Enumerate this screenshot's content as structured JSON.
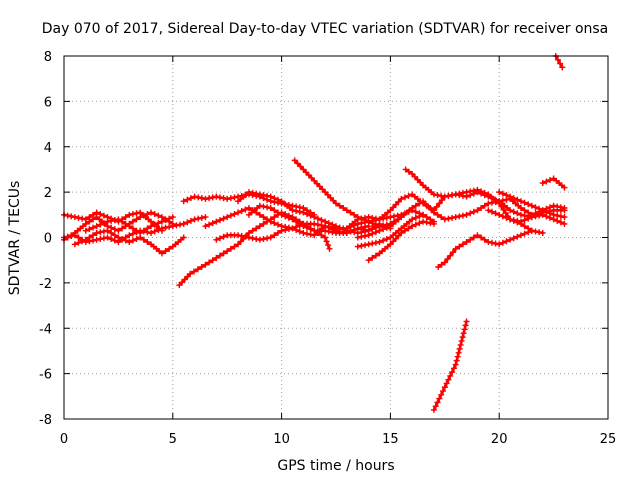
{
  "chart_data": {
    "type": "scatter",
    "title": "Day 070 of 2017, Sidereal Day-to-day VTEC variation (SDTVAR) for receiver onsa",
    "xlabel": "GPS time / hours",
    "ylabel": "SDTVAR / TECUs",
    "xlim": [
      0,
      25
    ],
    "ylim": [
      -8,
      8
    ],
    "xticks": [
      0,
      5,
      10,
      15,
      20,
      25
    ],
    "yticks": [
      -8,
      -6,
      -4,
      -2,
      0,
      2,
      4,
      6,
      8
    ],
    "grid": true,
    "marker": "plus",
    "color": "#ff0000",
    "series": [
      {
        "points": [
          [
            0,
            1.0
          ],
          [
            0.5,
            0.9
          ],
          [
            1,
            0.8
          ],
          [
            1.5,
            1.1
          ],
          [
            2,
            0.9
          ],
          [
            2.5,
            0.7
          ],
          [
            3,
            1.0
          ],
          [
            3.5,
            1.1
          ],
          [
            4,
            0.7
          ],
          [
            4.5,
            0.3
          ]
        ]
      },
      {
        "points": [
          [
            0,
            0.0
          ],
          [
            0.5,
            0.1
          ],
          [
            1,
            -0.2
          ],
          [
            1.5,
            -0.1
          ],
          [
            2,
            0.0
          ],
          [
            2.5,
            -0.2
          ],
          [
            3,
            0.1
          ],
          [
            3.5,
            0.3
          ],
          [
            4,
            0.2
          ],
          [
            4.5,
            0.4
          ],
          [
            5,
            0.5
          ],
          [
            5.5,
            0.6
          ],
          [
            6,
            0.8
          ],
          [
            6.5,
            0.9
          ]
        ]
      },
      {
        "points": [
          [
            0,
            -0.1
          ],
          [
            0.5,
            0.2
          ],
          [
            1,
            0.6
          ],
          [
            1.5,
            0.9
          ],
          [
            2,
            0.5
          ],
          [
            2.5,
            0.3
          ],
          [
            3,
            0.6
          ],
          [
            3.5,
            0.9
          ],
          [
            4,
            1.1
          ],
          [
            4.5,
            0.9
          ],
          [
            5,
            0.6
          ]
        ]
      },
      {
        "points": [
          [
            0.5,
            -0.3
          ],
          [
            1,
            -0.1
          ],
          [
            1.5,
            0.2
          ],
          [
            2,
            0.3
          ],
          [
            2.5,
            0.0
          ],
          [
            3,
            -0.2
          ],
          [
            3.5,
            0.0
          ],
          [
            4,
            -0.3
          ],
          [
            4.5,
            -0.7
          ],
          [
            5,
            -0.4
          ],
          [
            5.5,
            0.0
          ]
        ]
      },
      {
        "points": [
          [
            1,
            0.3
          ],
          [
            1.5,
            0.5
          ],
          [
            2,
            0.7
          ],
          [
            2.5,
            0.8
          ],
          [
            3,
            0.5
          ],
          [
            3.5,
            0.2
          ],
          [
            4,
            0.5
          ],
          [
            4.5,
            0.7
          ],
          [
            5,
            0.9
          ]
        ]
      },
      {
        "points": [
          [
            5.3,
            -2.1
          ],
          [
            5.8,
            -1.6
          ],
          [
            6.5,
            -1.2
          ],
          [
            7,
            -0.9
          ],
          [
            7.5,
            -0.6
          ],
          [
            8,
            -0.3
          ],
          [
            8.5,
            0.2
          ],
          [
            9,
            0.5
          ],
          [
            9.5,
            0.8
          ],
          [
            10,
            1.1
          ],
          [
            10.5,
            0.9
          ],
          [
            11,
            0.6
          ],
          [
            11.5,
            0.3
          ],
          [
            12,
            0.0
          ],
          [
            12.2,
            -0.5
          ]
        ]
      },
      {
        "points": [
          [
            5.5,
            1.6
          ],
          [
            6,
            1.8
          ],
          [
            6.5,
            1.7
          ],
          [
            7,
            1.8
          ],
          [
            7.5,
            1.7
          ],
          [
            8,
            1.8
          ],
          [
            8.5,
            1.9
          ],
          [
            9,
            1.8
          ],
          [
            9.5,
            1.6
          ],
          [
            10,
            1.5
          ],
          [
            10.5,
            1.4
          ],
          [
            11,
            1.3
          ],
          [
            11.5,
            1.0
          ]
        ]
      },
      {
        "points": [
          [
            6.5,
            0.5
          ],
          [
            7,
            0.7
          ],
          [
            7.5,
            0.9
          ],
          [
            8,
            1.1
          ],
          [
            8.5,
            1.3
          ],
          [
            9,
            1.0
          ],
          [
            9.5,
            0.7
          ],
          [
            10,
            0.5
          ],
          [
            10.5,
            0.4
          ],
          [
            11,
            0.6
          ],
          [
            11.5,
            0.6
          ],
          [
            12,
            0.5
          ],
          [
            12.5,
            0.4
          ],
          [
            13,
            0.4
          ],
          [
            13.5,
            0.6
          ],
          [
            14,
            0.7
          ],
          [
            14.5,
            0.8
          ],
          [
            15,
            0.9
          ],
          [
            15.5,
            1.0
          ],
          [
            16,
            1.2
          ],
          [
            16.5,
            1.0
          ],
          [
            17,
            0.7
          ]
        ]
      },
      {
        "points": [
          [
            7,
            -0.1
          ],
          [
            7.5,
            0.1
          ],
          [
            8,
            0.1
          ],
          [
            8.5,
            0.0
          ],
          [
            9,
            -0.1
          ],
          [
            9.5,
            0.0
          ],
          [
            10,
            0.3
          ],
          [
            10.5,
            0.4
          ],
          [
            11,
            0.2
          ],
          [
            11.5,
            0.1
          ],
          [
            12,
            0.5
          ],
          [
            12.5,
            0.3
          ],
          [
            13,
            0.2
          ],
          [
            13.5,
            0.4
          ],
          [
            14,
            0.5
          ]
        ]
      },
      {
        "points": [
          [
            8,
            1.6
          ],
          [
            8.5,
            2.0
          ],
          [
            9,
            1.9
          ],
          [
            9.5,
            1.8
          ],
          [
            10,
            1.6
          ],
          [
            10.5,
            1.2
          ],
          [
            11,
            1.1
          ],
          [
            11.5,
            0.9
          ],
          [
            12,
            0.7
          ],
          [
            12.5,
            0.5
          ],
          [
            13,
            0.3
          ],
          [
            13.5,
            0.2
          ],
          [
            14,
            0.3
          ],
          [
            14.5,
            0.6
          ]
        ]
      },
      {
        "points": [
          [
            8.5,
            1.0
          ],
          [
            9,
            1.4
          ],
          [
            9.5,
            1.3
          ],
          [
            10,
            1.0
          ],
          [
            10.5,
            0.8
          ],
          [
            11,
            0.5
          ],
          [
            11.5,
            0.3
          ],
          [
            12,
            0.3
          ],
          [
            12.5,
            0.2
          ],
          [
            13,
            0.2
          ],
          [
            13.5,
            0.4
          ],
          [
            14,
            0.3
          ],
          [
            14.5,
            0.5
          ],
          [
            15,
            0.4
          ]
        ]
      },
      {
        "points": [
          [
            10.6,
            3.4
          ],
          [
            11,
            3.0
          ],
          [
            11.5,
            2.5
          ],
          [
            12,
            2.0
          ],
          [
            12.5,
            1.5
          ],
          [
            13,
            1.2
          ],
          [
            13.5,
            0.9
          ],
          [
            14,
            0.7
          ],
          [
            14.5,
            0.5
          ],
          [
            15,
            0.6
          ],
          [
            15.5,
            0.9
          ]
        ]
      },
      {
        "points": [
          [
            13,
            0.4
          ],
          [
            13.5,
            0.8
          ],
          [
            14,
            0.9
          ],
          [
            14.5,
            0.8
          ],
          [
            15,
            1.2
          ],
          [
            15.5,
            1.7
          ],
          [
            16,
            1.9
          ],
          [
            16.5,
            1.5
          ],
          [
            17,
            1.2
          ],
          [
            17.5,
            1.8
          ],
          [
            18,
            1.9
          ],
          [
            18.5,
            1.8
          ],
          [
            19,
            2.0
          ],
          [
            19.5,
            1.8
          ],
          [
            20,
            1.6
          ],
          [
            20.5,
            1.2
          ],
          [
            21,
            1.0
          ],
          [
            21.5,
            0.9
          ],
          [
            22,
            1.1
          ],
          [
            22.5,
            1.2
          ],
          [
            23,
            1.2
          ]
        ]
      },
      {
        "points": [
          [
            13.5,
            0.0
          ],
          [
            14,
            0.1
          ],
          [
            14.5,
            0.3
          ],
          [
            15,
            0.5
          ],
          [
            15.5,
            0.9
          ],
          [
            16,
            1.3
          ],
          [
            16.5,
            1.6
          ],
          [
            17,
            1.1
          ],
          [
            17.5,
            0.8
          ],
          [
            18,
            0.9
          ],
          [
            18.5,
            1.0
          ],
          [
            19,
            1.2
          ],
          [
            19.5,
            1.5
          ],
          [
            20,
            1.6
          ],
          [
            20.5,
            1.7
          ],
          [
            21,
            1.3
          ],
          [
            21.5,
            1.0
          ],
          [
            22,
            1.2
          ],
          [
            22.5,
            1.4
          ],
          [
            23,
            1.3
          ]
        ]
      },
      {
        "points": [
          [
            13.5,
            -0.4
          ],
          [
            14,
            -0.3
          ],
          [
            14.5,
            -0.2
          ],
          [
            15,
            0.0
          ],
          [
            15.5,
            0.4
          ],
          [
            16,
            0.8
          ],
          [
            16.5,
            1.0
          ]
        ]
      },
      {
        "points": [
          [
            14,
            -1.0
          ],
          [
            14.5,
            -0.7
          ],
          [
            15,
            -0.3
          ],
          [
            15.5,
            0.2
          ],
          [
            16,
            0.5
          ],
          [
            16.5,
            0.7
          ],
          [
            17,
            0.6
          ]
        ]
      },
      {
        "points": [
          [
            15.7,
            3.0
          ],
          [
            16,
            2.8
          ],
          [
            16.5,
            2.3
          ],
          [
            17,
            1.9
          ],
          [
            17.5,
            1.8
          ],
          [
            18,
            1.9
          ],
          [
            18.5,
            2.0
          ],
          [
            19,
            2.1
          ],
          [
            19.5,
            1.9
          ],
          [
            20,
            1.5
          ],
          [
            20.5,
            0.8
          ],
          [
            21,
            0.6
          ],
          [
            21.5,
            0.3
          ]
        ]
      },
      {
        "points": [
          [
            17.2,
            -1.3
          ],
          [
            17.5,
            -1.1
          ],
          [
            18,
            -0.5
          ],
          [
            18.5,
            -0.2
          ],
          [
            19,
            0.1
          ],
          [
            19.5,
            -0.2
          ],
          [
            20,
            -0.3
          ],
          [
            20.5,
            -0.1
          ],
          [
            21,
            0.1
          ],
          [
            21.5,
            0.3
          ],
          [
            22,
            0.2
          ]
        ]
      },
      {
        "points": [
          [
            19.5,
            1.2
          ],
          [
            20,
            1.0
          ],
          [
            20.5,
            0.8
          ],
          [
            21,
            0.7
          ],
          [
            21.5,
            0.9
          ],
          [
            22,
            1.0
          ],
          [
            22.5,
            0.8
          ],
          [
            23,
            0.6
          ]
        ]
      },
      {
        "points": [
          [
            20,
            2.0
          ],
          [
            20.5,
            1.8
          ],
          [
            21,
            1.6
          ],
          [
            21.5,
            1.4
          ],
          [
            22,
            1.2
          ],
          [
            22.5,
            1.0
          ],
          [
            23,
            0.9
          ]
        ]
      },
      {
        "points": [
          [
            22,
            2.4
          ],
          [
            22.5,
            2.6
          ],
          [
            23,
            2.2
          ]
        ]
      },
      {
        "points": [
          [
            22.6,
            8.0
          ],
          [
            22.9,
            7.5
          ]
        ]
      },
      {
        "points": [
          [
            17,
            -7.6
          ],
          [
            17.5,
            -6.6
          ],
          [
            18,
            -5.6
          ],
          [
            18.5,
            -3.7
          ]
        ]
      }
    ]
  }
}
